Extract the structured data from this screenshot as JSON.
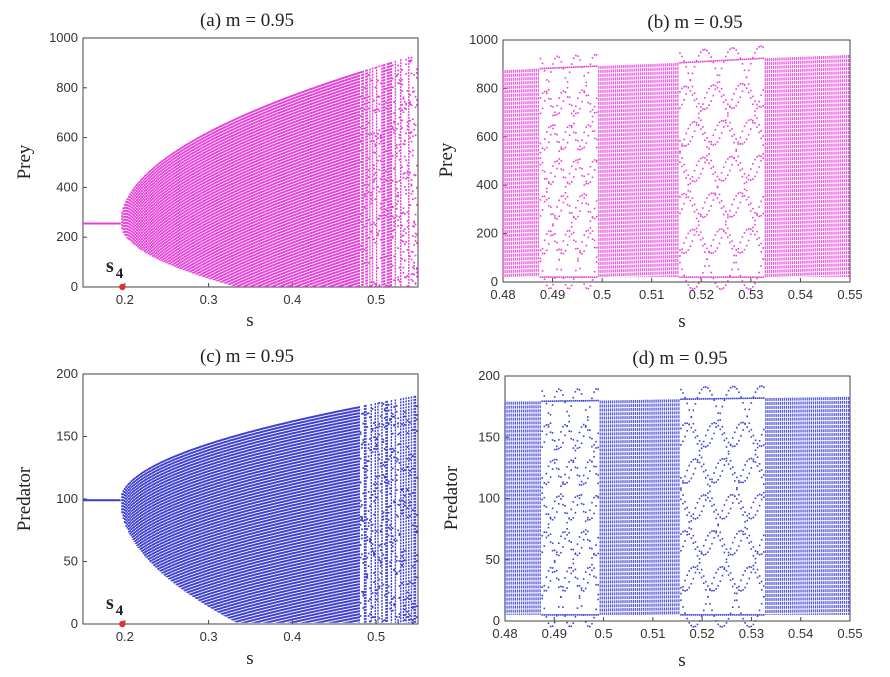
{
  "figure": {
    "colors": {
      "prey": "#e63fd9",
      "predator": "#3c3fd2",
      "marker": "#e53030",
      "axis": "#444444"
    }
  },
  "chart_data": [
    {
      "id": "a",
      "type": "scatter",
      "title": "(a) m = 0.95",
      "xlabel": "s",
      "ylabel": "Prey",
      "xlim": [
        0.15,
        0.55
      ],
      "ylim": [
        0,
        1000
      ],
      "xticks": [
        0.2,
        0.3,
        0.4,
        0.5
      ],
      "xtick_labels": [
        "0.2",
        "0.3",
        "0.4",
        "0.5"
      ],
      "yticks": [
        0,
        200,
        400,
        600,
        800,
        1000
      ],
      "ytick_labels": [
        "0",
        "200",
        "400",
        "600",
        "800",
        "1000"
      ],
      "series_color": "prey",
      "equilibrium": 255,
      "bifurcation_s": 0.195,
      "envelope_max": 935,
      "chaos_start": 0.48,
      "marker": {
        "label": "s",
        "subscript": "4",
        "x": 0.197,
        "y": 0
      }
    },
    {
      "id": "b",
      "type": "scatter",
      "title": "(b) m = 0.95",
      "xlabel": "s",
      "ylabel": "Prey",
      "xlim": [
        0.48,
        0.55
      ],
      "ylim": [
        0,
        1000
      ],
      "xticks": [
        0.48,
        0.49,
        0.5,
        0.51,
        0.52,
        0.53,
        0.54,
        0.55
      ],
      "xtick_labels": [
        "0.48",
        "0.49",
        "0.5",
        "0.51",
        "0.52",
        "0.53",
        "0.54",
        "0.55"
      ],
      "yticks": [
        0,
        200,
        400,
        600,
        800,
        1000
      ],
      "ytick_labels": [
        "0",
        "200",
        "400",
        "600",
        "800",
        "1000"
      ],
      "series_color": "prey",
      "ymax_curve": [
        [
          0.48,
          875
        ],
        [
          0.5,
          893
        ],
        [
          0.515,
          905
        ],
        [
          0.533,
          925
        ],
        [
          0.55,
          938
        ]
      ],
      "ymin": 20,
      "periodic_windows": [
        [
          0.4875,
          0.499
        ],
        [
          0.5155,
          0.5325
        ]
      ]
    },
    {
      "id": "c",
      "type": "scatter",
      "title": "(c) m = 0.95",
      "xlabel": "s",
      "ylabel": "Predator",
      "xlim": [
        0.15,
        0.55
      ],
      "ylim": [
        0,
        200
      ],
      "xticks": [
        0.2,
        0.3,
        0.4,
        0.5
      ],
      "xtick_labels": [
        "0.2",
        "0.3",
        "0.4",
        "0.5"
      ],
      "yticks": [
        0,
        50,
        100,
        150,
        200
      ],
      "ytick_labels": [
        "0",
        "50",
        "100",
        "150",
        "200"
      ],
      "series_color": "predator",
      "equilibrium": 99,
      "bifurcation_s": 0.195,
      "envelope_max": 183,
      "envelope_min": 1,
      "chaos_start": 0.48,
      "marker": {
        "label": "s",
        "subscript": "4",
        "x": 0.197,
        "y": 0
      }
    },
    {
      "id": "d",
      "type": "scatter",
      "title": "(d) m = 0.95",
      "xlabel": "s",
      "ylabel": "Predator",
      "xlim": [
        0.48,
        0.55
      ],
      "ylim": [
        0,
        200
      ],
      "xticks": [
        0.48,
        0.49,
        0.5,
        0.51,
        0.52,
        0.53,
        0.54,
        0.55
      ],
      "xtick_labels": [
        "0.48",
        "0.49",
        "0.5",
        "0.51",
        "0.52",
        "0.53",
        "0.54",
        "0.55"
      ],
      "yticks": [
        0,
        50,
        100,
        150,
        200
      ],
      "ytick_labels": [
        "0",
        "50",
        "100",
        "150",
        "200"
      ],
      "series_color": "predator",
      "ymax_curve": [
        [
          0.48,
          179
        ],
        [
          0.5,
          180
        ],
        [
          0.515,
          181
        ],
        [
          0.533,
          182
        ],
        [
          0.55,
          183
        ]
      ],
      "ymin": 5,
      "periodic_windows": [
        [
          0.4875,
          0.499
        ],
        [
          0.5155,
          0.5325
        ]
      ]
    }
  ]
}
